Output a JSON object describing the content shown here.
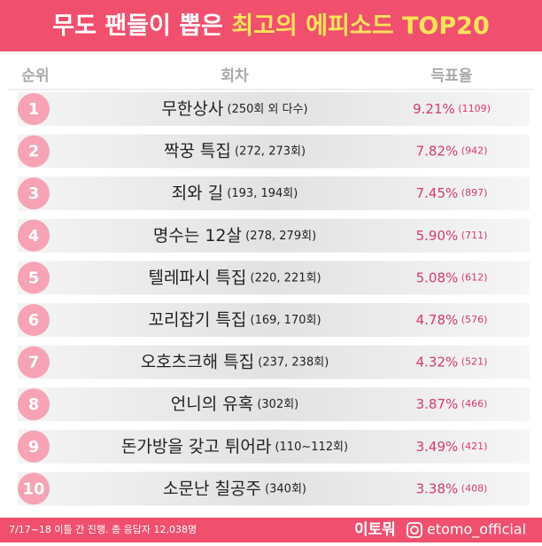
{
  "header": {
    "title_white": "무도 팬들이 뽑은",
    "title_yellow": "최고의 에피소드 TOP20"
  },
  "table": {
    "columns": [
      "순위",
      "회차",
      "득표율"
    ],
    "rows": [
      {
        "rank": "1",
        "name": "무한상사",
        "detail": "(250회 외 다수)",
        "percent": "9.21%",
        "count": "(1109)"
      },
      {
        "rank": "2",
        "name": "짝꿍 특집",
        "detail": "(272, 273회)",
        "percent": "7.82%",
        "count": "(942)"
      },
      {
        "rank": "3",
        "name": "죄와 길",
        "detail": "(193, 194회)",
        "percent": "7.45%",
        "count": "(897)"
      },
      {
        "rank": "4",
        "name": "명수는 12살",
        "detail": "(278, 279회)",
        "percent": "5.90%",
        "count": "(711)"
      },
      {
        "rank": "5",
        "name": "텔레파시 특집",
        "detail": "(220, 221회)",
        "percent": "5.08%",
        "count": "(612)"
      },
      {
        "rank": "6",
        "name": "꼬리잡기 특집",
        "detail": "(169, 170회)",
        "percent": "4.78%",
        "count": "(576)"
      },
      {
        "rank": "7",
        "name": "오호츠크해 특집",
        "detail": "(237, 238회)",
        "percent": "4.32%",
        "count": "(521)"
      },
      {
        "rank": "8",
        "name": "언니의 유혹",
        "detail": "(302회)",
        "percent": "3.87%",
        "count": "(466)"
      },
      {
        "rank": "9",
        "name": "돈가방을 갖고 튀어라",
        "detail": "(110~112회)",
        "percent": "3.49%",
        "count": "(421)"
      },
      {
        "rank": "10",
        "name": "소문난 칠공주",
        "detail": "(340회)",
        "percent": "3.38%",
        "count": "(408)"
      }
    ]
  },
  "footer": {
    "note": "7/17~18 이틀 간 진행. 총 응답자 12,038명",
    "brand": "이토뭐",
    "account": "etomo_official"
  }
}
